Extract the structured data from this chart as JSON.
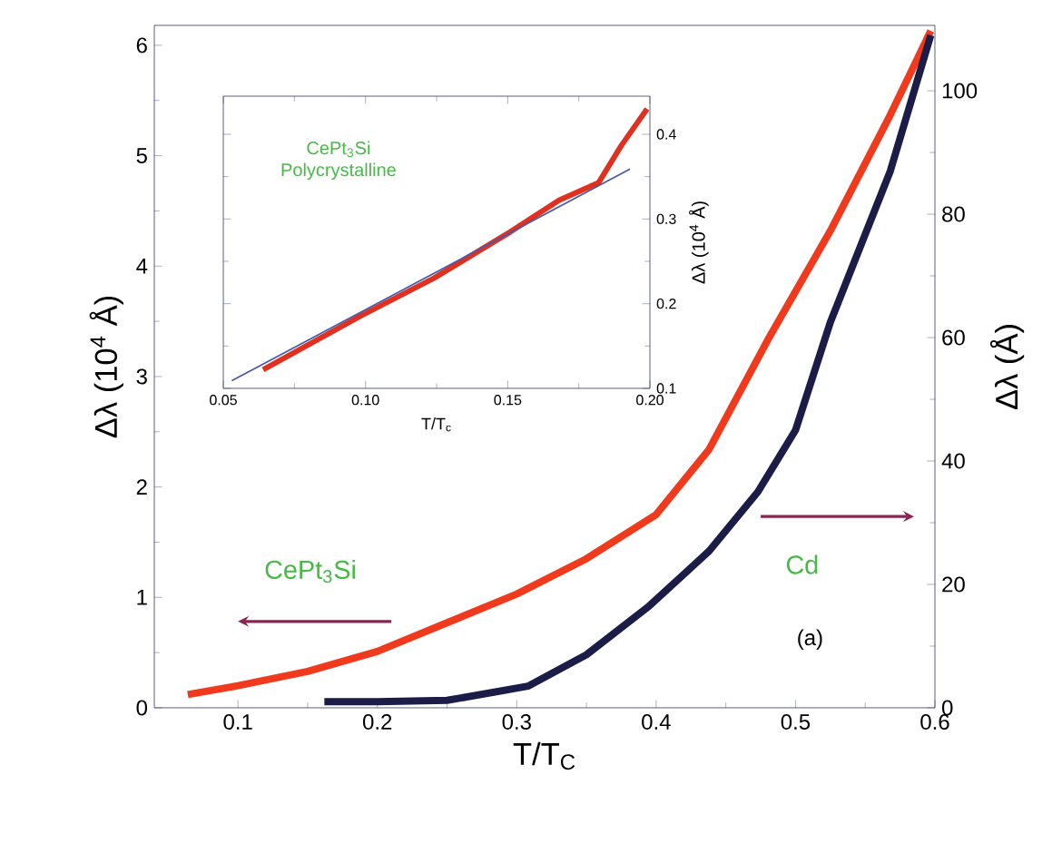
{
  "chart_data": [
    {
      "type": "line",
      "xlabel": "T/T$_{C}$",
      "ylabel": "Δλ (10$^{4}$ Å)",
      "y2label": "Δλ (Å)",
      "xlim": [
        0.04,
        0.6
      ],
      "ylim": [
        0,
        6.18
      ],
      "y2lim": [
        0,
        110.6
      ],
      "xticks": [
        0.1,
        0.2,
        0.3,
        0.4,
        0.5,
        0.6
      ],
      "yticks": [
        0,
        1,
        2,
        3,
        4,
        5,
        6
      ],
      "y2ticks": [
        0,
        20,
        40,
        60,
        80,
        100
      ],
      "marker": "none",
      "grid": false,
      "annotations": [
        "CePt$_{3}$Si",
        "Cd",
        "(a)"
      ],
      "series": [
        {
          "color": "#f03a1e",
          "x": [
            0.064,
            0.1,
            0.15,
            0.2,
            0.25,
            0.3,
            0.35,
            0.4,
            0.438,
            0.48,
            0.525,
            0.568,
            0.597
          ],
          "values": [
            0.12,
            0.2,
            0.33,
            0.51,
            0.77,
            1.03,
            1.35,
            1.75,
            2.34,
            3.33,
            4.32,
            5.37,
            6.13
          ]
        },
        {
          "color": "#1c1c48",
          "axis": "y2",
          "x": [
            0.162,
            0.2,
            0.25,
            0.308,
            0.35,
            0.395,
            0.438,
            0.473,
            0.5,
            0.525,
            0.568,
            0.597
          ],
          "values": [
            1,
            1,
            1.2,
            3.5,
            8.6,
            16.5,
            25.4,
            35,
            45,
            62.5,
            87,
            109
          ]
        }
      ]
    },
    {
      "type": "line",
      "xlabel": "T/T$_{c}$",
      "ylabel": "Δλ (10$^{4}$ Å)",
      "xlim": [
        0.05,
        0.2
      ],
      "ylim": [
        0.1,
        0.445
      ],
      "xticks": [
        0.05,
        {
          "value": 0.1,
          "label": "0.10"
        },
        0.15,
        {
          "value": 0.2,
          "label": "0.20"
        }
      ],
      "yticks": [
        0.1,
        0.2,
        0.3,
        0.4
      ],
      "marker": "none",
      "grid": false,
      "annotations": [
        "CePt$_{3}$Si",
        "Polycrystalline"
      ],
      "series": [
        {
          "color": "#e03020",
          "x": [
            0.064,
            0.098,
            0.124,
            0.151,
            0.168,
            0.182,
            0.19,
            0.199
          ],
          "values": [
            0.122,
            0.185,
            0.23,
            0.285,
            0.322,
            0.343,
            0.387,
            0.43
          ]
        },
        {
          "color": "#4a5aa8",
          "x": [
            0.053,
            0.193
          ],
          "values": [
            0.109,
            0.359
          ]
        }
      ]
    }
  ]
}
